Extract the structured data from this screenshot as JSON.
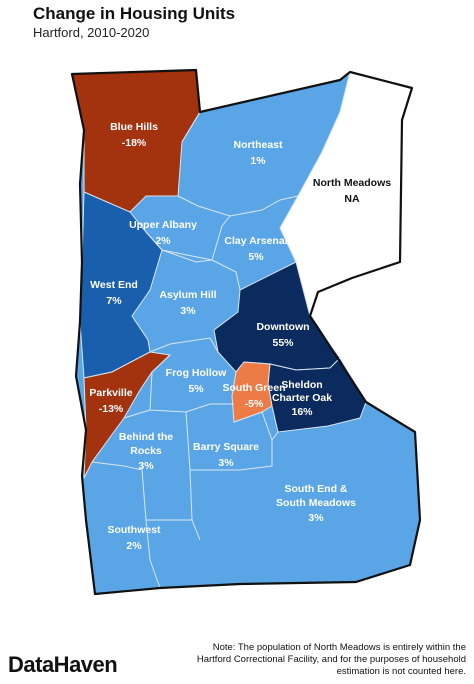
{
  "title": "Change in Housing Units",
  "subtitle": "Hartford, 2010-2020",
  "colors": {
    "strong_decline": "#a3320f",
    "decline": "#ec7b46",
    "low_growth": "#5aa5e6",
    "mid_growth": "#1a5fae",
    "high_growth": "#0b2a5e",
    "na": "#ffffff",
    "border_inner": "#d9e6f2",
    "border_outer": "#111111"
  },
  "neighborhoods": [
    {
      "name": "Blue Hills",
      "line2": "-18%",
      "class": "strong_decline"
    },
    {
      "name": "Northeast",
      "line2": "1%",
      "class": "low_growth"
    },
    {
      "name": "North Meadows",
      "line2": "NA",
      "class": "na"
    },
    {
      "name": "Upper Albany",
      "line2": "2%",
      "class": "low_growth"
    },
    {
      "name": "Clay Arsenal",
      "line2": "5%",
      "class": "low_growth"
    },
    {
      "name": "West End",
      "line2": "7%",
      "class": "mid_growth"
    },
    {
      "name": "Asylum Hill",
      "line2": "3%",
      "class": "low_growth"
    },
    {
      "name": "Downtown",
      "line2": "55%",
      "class": "high_growth"
    },
    {
      "name": "Frog Hollow",
      "line2": "5%",
      "class": "low_growth"
    },
    {
      "name": "South Green",
      "line2": "-5%",
      "class": "decline"
    },
    {
      "name": "Sheldon Charter Oak",
      "line1a": "Sheldon",
      "line1b": "Charter Oak",
      "line2": "16%",
      "class": "high_growth"
    },
    {
      "name": "Parkville",
      "line2": "-13%",
      "class": "strong_decline"
    },
    {
      "name": "Behind the Rocks",
      "line1a": "Behind the",
      "line1b": "Rocks",
      "line2": "3%",
      "class": "low_growth"
    },
    {
      "name": "Barry Square",
      "line2": "3%",
      "class": "low_growth"
    },
    {
      "name": "South End & South Meadows",
      "line1a": "South End &",
      "line1b": "South Meadows",
      "line2": "3%",
      "class": "low_growth"
    },
    {
      "name": "Southwest",
      "line2": "2%",
      "class": "low_growth"
    }
  ],
  "brand": "DataHaven",
  "note": "Note: The population of North Meadows is entirely within the Hartford Correctional Facility, and for the purposes of household estimation is not counted here."
}
